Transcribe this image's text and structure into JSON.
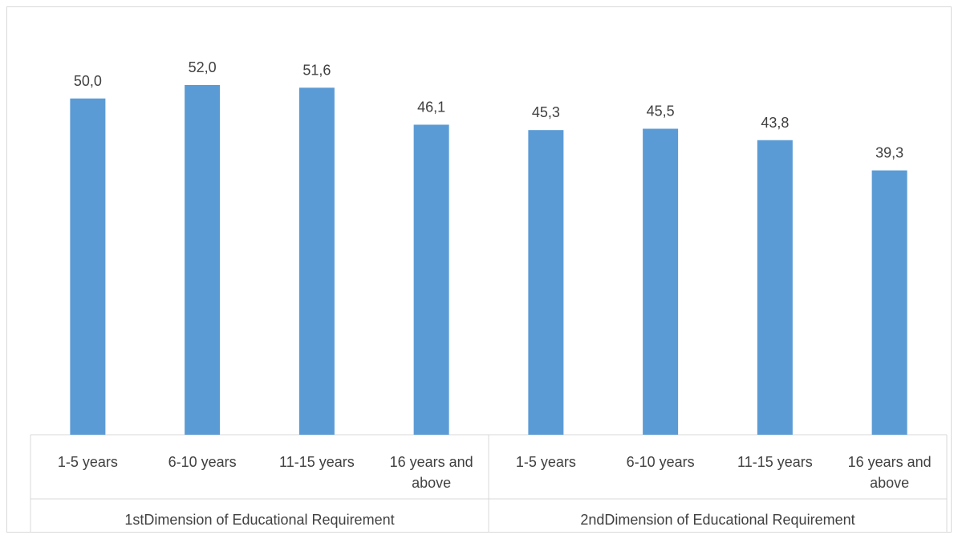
{
  "chart_data": {
    "type": "bar",
    "groups": [
      {
        "name": "1stDimension of Educational Requirement",
        "categories": [
          "1-5 years",
          "6-10 years",
          "11-15 years",
          "16 years and above"
        ],
        "values": [
          50.0,
          52.0,
          51.6,
          46.1
        ],
        "value_labels": [
          "50,0",
          "52,0",
          "51,6",
          "46,1"
        ]
      },
      {
        "name": "2ndDimension of Educational Requirement",
        "categories": [
          "1-5 years",
          "6-10 years",
          "11-15 years",
          "16 years and above"
        ],
        "values": [
          45.3,
          45.5,
          43.8,
          39.3
        ],
        "value_labels": [
          "45,3",
          "45,5",
          "43,8",
          "39,3"
        ]
      }
    ],
    "title": "",
    "xlabel": "",
    "ylabel": "",
    "ylim": [
      0,
      60
    ],
    "grid": false,
    "legend": "none",
    "colors": {
      "bar": "#5b9bd5",
      "text": "#404040",
      "axis": "#d9d9d9"
    }
  }
}
